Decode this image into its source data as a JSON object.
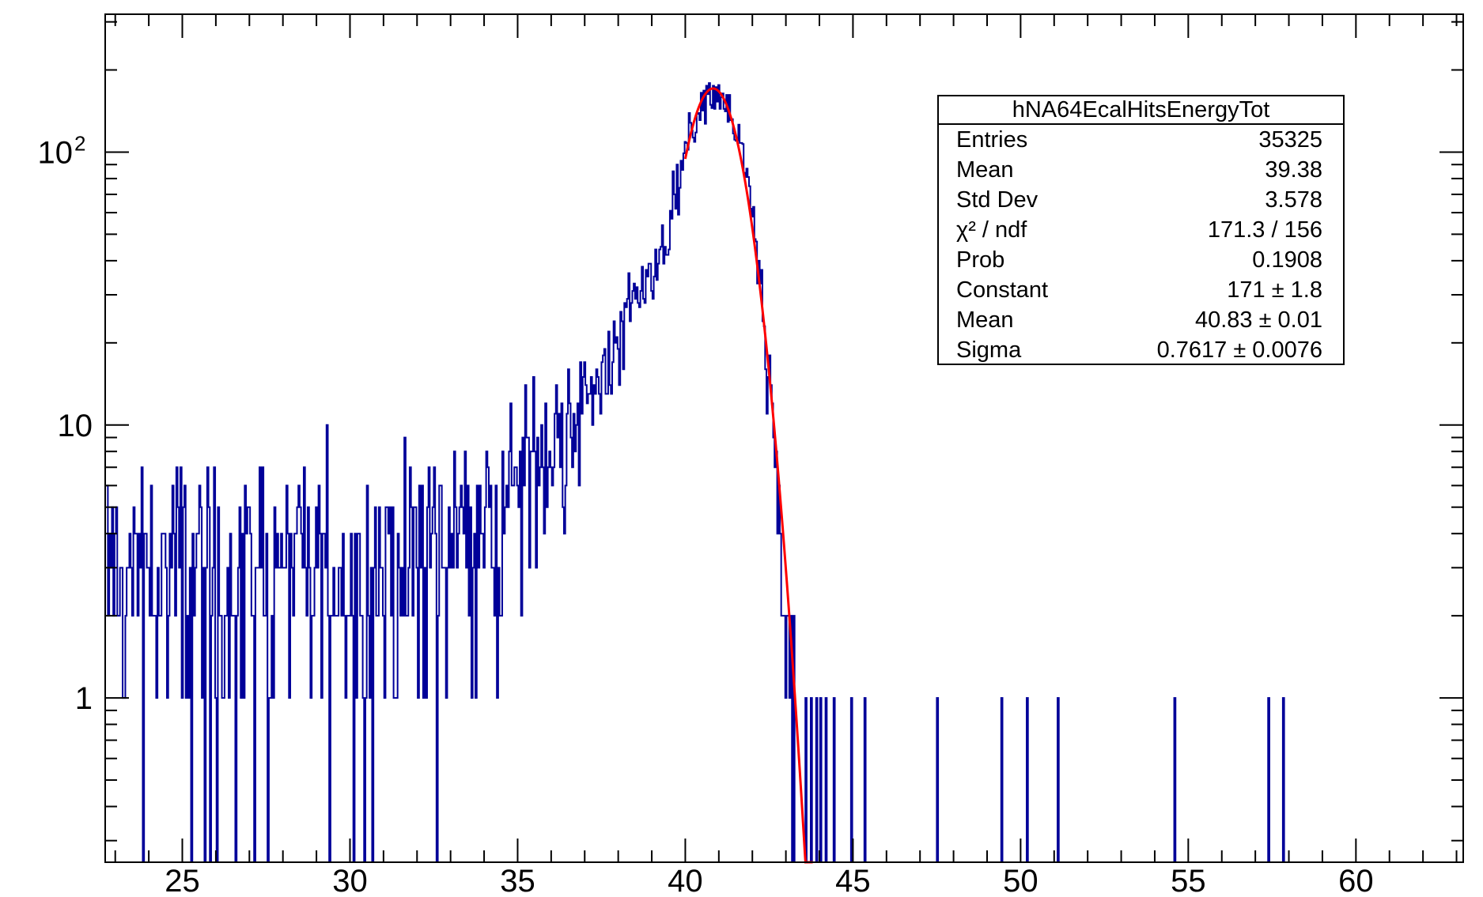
{
  "chart_data": {
    "type": "histogram",
    "title": "",
    "xlabel": "",
    "ylabel": "",
    "xlim": [
      22.7,
      63.2
    ],
    "ylim": [
      0.25,
      320
    ],
    "yscale": "log",
    "grid": false,
    "x_ticks": [
      25,
      30,
      35,
      40,
      45,
      50,
      55,
      60
    ],
    "y_ticks": [
      {
        "value": 1,
        "label": "1"
      },
      {
        "value": 10,
        "label": "10"
      },
      {
        "value": 100,
        "label": "10",
        "sup": "2"
      }
    ],
    "histogram": {
      "color": "#000099",
      "bin_width": 0.04,
      "x_range": [
        22.7,
        63.2
      ],
      "profile_points": [
        {
          "x": 22.7,
          "y": 3.0
        },
        {
          "x": 30.0,
          "y": 3.0
        },
        {
          "x": 33.0,
          "y": 4.2
        },
        {
          "x": 35.0,
          "y": 6.5
        },
        {
          "x": 37.0,
          "y": 12.5
        },
        {
          "x": 38.0,
          "y": 20
        },
        {
          "x": 39.0,
          "y": 35
        },
        {
          "x": 39.5,
          "y": 55
        },
        {
          "x": 40.0,
          "y": 105
        },
        {
          "x": 40.5,
          "y": 155
        },
        {
          "x": 40.83,
          "y": 171
        },
        {
          "x": 41.2,
          "y": 155
        },
        {
          "x": 41.6,
          "y": 112
        },
        {
          "x": 42.0,
          "y": 60
        },
        {
          "x": 42.4,
          "y": 22
        },
        {
          "x": 42.8,
          "y": 5
        },
        {
          "x": 43.0,
          "y": 2.2
        },
        {
          "x": 43.3,
          "y": 1.0
        }
      ],
      "isolated_entries": [
        43.6,
        43.75,
        43.9,
        44.05,
        44.2,
        44.45,
        44.95,
        45.35,
        47.5,
        49.45,
        50.2,
        51.1,
        54.6,
        57.4,
        57.85
      ]
    },
    "fit": {
      "type": "gaus",
      "color": "#ff0000",
      "constant": 171,
      "mean": 40.83,
      "sigma": 0.7617,
      "x_range": [
        40.0,
        43.8
      ]
    },
    "stats": {
      "title": "hNA64EcalHitsEnergyTot",
      "rows": [
        {
          "label": "Entries",
          "value": "35325"
        },
        {
          "label": "Mean",
          "value": "39.38"
        },
        {
          "label": "Std Dev",
          "value": "3.578"
        },
        {
          "label": "χ² / ndf",
          "value": "171.3 / 156"
        },
        {
          "label": "Prob",
          "value": "0.1908"
        },
        {
          "label": "Constant",
          "value": "171 ± 1.8"
        },
        {
          "label": "Mean",
          "value": "40.83 ± 0.01"
        },
        {
          "label": "Sigma",
          "value": "0.7617 ± 0.0076"
        }
      ]
    }
  }
}
